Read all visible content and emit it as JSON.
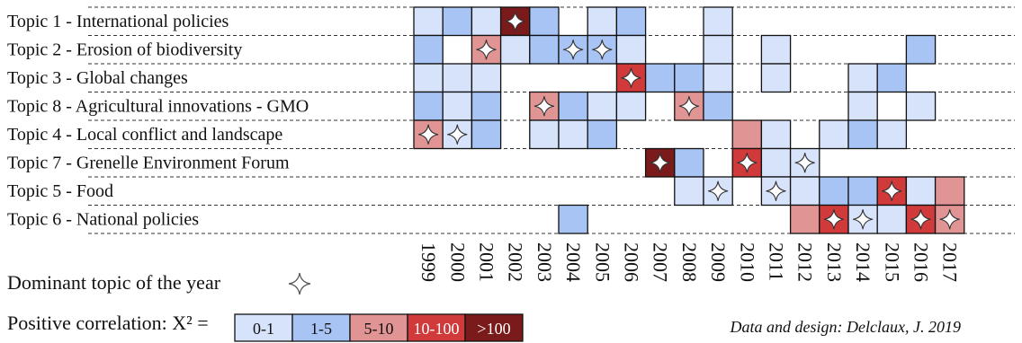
{
  "chart_data": {
    "type": "heatmap",
    "years": [
      "1999",
      "2000",
      "2001",
      "2002",
      "2003",
      "2004",
      "2005",
      "2006",
      "2007",
      "2008",
      "2009",
      "2010",
      "2011",
      "2012",
      "2013",
      "2014",
      "2015",
      "2016",
      "2017"
    ],
    "topics": [
      {
        "label": "Topic 1 - International policies",
        "cells": [
          1,
          2,
          1,
          5,
          2,
          0,
          1,
          2,
          0,
          0,
          1,
          0,
          0,
          0,
          0,
          0,
          0,
          0,
          0
        ],
        "dominant": [
          4
        ]
      },
      {
        "label": "Topic 2 - Erosion of biodiversity",
        "cells": [
          2,
          0,
          3,
          1,
          2,
          2,
          2,
          1,
          0,
          0,
          1,
          0,
          1,
          0,
          0,
          0,
          0,
          2,
          0
        ],
        "dominant": [
          3,
          6,
          7
        ]
      },
      {
        "label": "Topic 3 - Global changes",
        "cells": [
          1,
          1,
          1,
          0,
          0,
          0,
          0,
          4,
          2,
          2,
          1,
          0,
          1,
          0,
          0,
          1,
          2,
          0,
          0
        ],
        "dominant": [
          8
        ]
      },
      {
        "label": "Topic 8 - Agricultural innovations - GMO",
        "cells": [
          2,
          1,
          2,
          0,
          3,
          2,
          1,
          1,
          0,
          3,
          2,
          0,
          0,
          0,
          0,
          1,
          0,
          1,
          0
        ],
        "dominant": [
          5,
          10
        ]
      },
      {
        "label": "Topic 4 - Local conflict and landscape",
        "cells": [
          3,
          1,
          2,
          0,
          1,
          1,
          2,
          0,
          0,
          0,
          0,
          3,
          1,
          0,
          1,
          2,
          1,
          0,
          0
        ],
        "dominant": [
          1,
          2
        ]
      },
      {
        "label": "Topic 7 - Grenelle Environment Forum",
        "cells": [
          0,
          0,
          0,
          0,
          0,
          0,
          0,
          0,
          5,
          2,
          0,
          4,
          1,
          1,
          0,
          0,
          0,
          0,
          0
        ],
        "dominant": [
          9,
          12,
          14
        ]
      },
      {
        "label": "Topic 5 - Food",
        "cells": [
          0,
          0,
          0,
          0,
          0,
          0,
          0,
          0,
          0,
          1,
          1,
          0,
          1,
          1,
          2,
          2,
          4,
          1,
          3
        ],
        "dominant": [
          11,
          13,
          17
        ]
      },
      {
        "label": "Topic 6 - National policies",
        "cells": [
          0,
          0,
          0,
          0,
          0,
          2,
          0,
          0,
          0,
          0,
          0,
          0,
          0,
          3,
          4,
          1,
          1,
          4,
          3
        ],
        "dominant": [
          15,
          16,
          18,
          19
        ]
      }
    ],
    "dominant_label": "Dominant topic of the year",
    "legend": {
      "title": "Positive correlation: X² =",
      "bins": [
        "0-1",
        "1-5",
        "5-10",
        "10-100",
        ">100"
      ],
      "colors": [
        "#d6e3fb",
        "#a7c4f4",
        "#e19494",
        "#d03a3a",
        "#7b1a1a"
      ],
      "text_colors": [
        "#111111",
        "#111111",
        "#111111",
        "#ffffff",
        "#ffffff"
      ]
    },
    "credit": "Data and design: Delclaux, J. 2019"
  }
}
